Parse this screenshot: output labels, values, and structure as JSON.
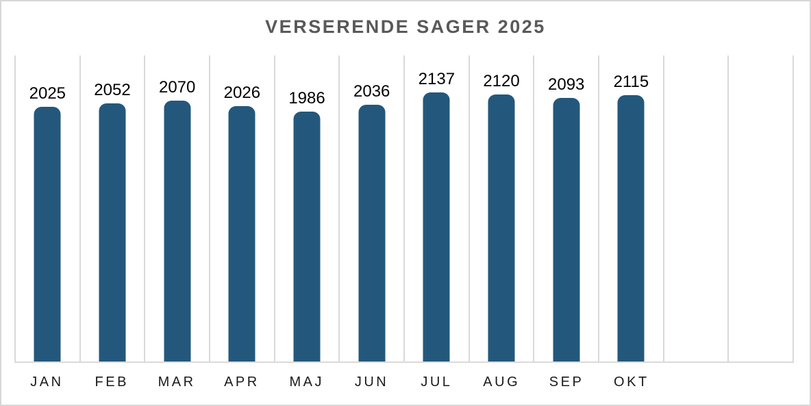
{
  "title": "VERSERENDE SAGER 2025",
  "colors": {
    "bar": "#23587c",
    "title_text": "#595959",
    "gridline": "#d9d9d9",
    "frame_border": "#d7d7d7",
    "value_label": "#000000",
    "axis_label": "#1a1a1a",
    "background": "#ffffff"
  },
  "chart_data": {
    "type": "bar",
    "title": "VERSERENDE SAGER 2025",
    "categories": [
      "JAN",
      "FEB",
      "MAR",
      "APR",
      "MAJ",
      "JUN",
      "JUL",
      "AUG",
      "SEP",
      "OKT"
    ],
    "values": [
      2025,
      2052,
      2070,
      2026,
      1986,
      2036,
      2137,
      2120,
      2093,
      2115
    ],
    "data_labels_visible": true,
    "xlabel": "",
    "ylabel": "",
    "ylim": [
      0,
      2430
    ],
    "y_axis_visible": false,
    "grid": "vertical category separator lines only",
    "legend": "none",
    "total_category_slots": 12,
    "bar_color": "#23587c"
  }
}
